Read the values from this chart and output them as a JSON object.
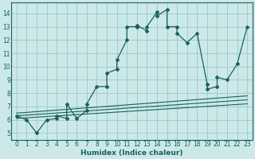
{
  "xlabel": "Humidex (Indice chaleur)",
  "bg_color": "#cce8e8",
  "grid_color": "#99c8c8",
  "line_color": "#1a6060",
  "xlim": [
    -0.5,
    23.5
  ],
  "ylim": [
    4.5,
    14.8
  ],
  "xticks": [
    0,
    1,
    2,
    3,
    4,
    5,
    6,
    7,
    8,
    9,
    10,
    11,
    12,
    13,
    14,
    15,
    16,
    17,
    18,
    19,
    20,
    21,
    22,
    23
  ],
  "yticks": [
    5,
    6,
    7,
    8,
    9,
    10,
    11,
    12,
    13,
    14
  ],
  "main_x": [
    0,
    1,
    2,
    3,
    4,
    4,
    5,
    5,
    6,
    7,
    7,
    8,
    9,
    9,
    10,
    10,
    11,
    11,
    12,
    12,
    13,
    13,
    14,
    14,
    15,
    15,
    16,
    16,
    17,
    18,
    19,
    19,
    20,
    20,
    21,
    22,
    23
  ],
  "main_y": [
    6.3,
    6.0,
    5.0,
    6.0,
    6.1,
    6.3,
    6.1,
    7.2,
    6.1,
    6.7,
    7.2,
    8.5,
    8.5,
    9.5,
    9.8,
    10.5,
    12.0,
    13.0,
    13.0,
    13.1,
    12.7,
    13.0,
    14.1,
    13.8,
    14.3,
    13.0,
    13.0,
    12.5,
    11.8,
    12.5,
    8.7,
    8.3,
    8.5,
    9.2,
    9.0,
    10.2,
    13.0
  ],
  "trend1_x": [
    0,
    23
  ],
  "trend1_y": [
    6.1,
    7.2
  ],
  "trend2_x": [
    0,
    23
  ],
  "trend2_y": [
    6.3,
    7.5
  ],
  "trend3_x": [
    0,
    23
  ],
  "trend3_y": [
    6.5,
    7.8
  ],
  "tick_fontsize": 5.5,
  "xlabel_fontsize": 6.5
}
